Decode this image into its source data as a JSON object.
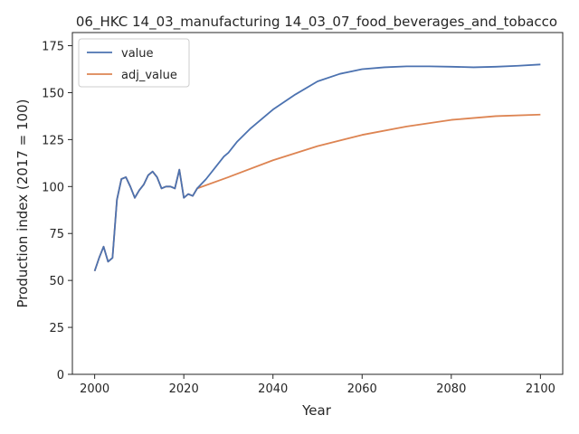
{
  "chart_data": {
    "type": "line",
    "title": "06_HKC 14_03_manufacturing 14_03_07_food_beverages_and_tobacco",
    "xlabel": "Year",
    "ylabel": "Production index (2017 = 100)",
    "xlim": [
      1995,
      2105
    ],
    "ylim": [
      0,
      182
    ],
    "xticks": [
      2000,
      2020,
      2040,
      2060,
      2080,
      2100
    ],
    "yticks": [
      0,
      25,
      50,
      75,
      100,
      125,
      150,
      175
    ],
    "legend_position": "top-left",
    "grid": false,
    "series": [
      {
        "name": "value",
        "color": "#4c72b0",
        "x": [
          2000,
          2001,
          2002,
          2003,
          2004,
          2005,
          2006,
          2007,
          2008,
          2009,
          2010,
          2011,
          2012,
          2013,
          2014,
          2015,
          2016,
          2017,
          2018,
          2019,
          2020,
          2021,
          2022,
          2023,
          2025,
          2027,
          2029,
          2030,
          2032,
          2035,
          2040,
          2045,
          2050,
          2055,
          2060,
          2065,
          2070,
          2075,
          2080,
          2085,
          2090,
          2095,
          2100
        ],
        "y": [
          55,
          62,
          68,
          60,
          62,
          93,
          104,
          105,
          100,
          94,
          98,
          101,
          106,
          108,
          105,
          99,
          100,
          100,
          99,
          109,
          94,
          96,
          95,
          99,
          104,
          110,
          116,
          118,
          124,
          131,
          141,
          149,
          156,
          160,
          162.5,
          163.5,
          164,
          164,
          163.8,
          163.5,
          163.8,
          164.3,
          165
        ]
      },
      {
        "name": "adj_value",
        "color": "#dd8452",
        "x": [
          2000,
          2001,
          2002,
          2003,
          2004,
          2005,
          2006,
          2007,
          2008,
          2009,
          2010,
          2011,
          2012,
          2013,
          2014,
          2015,
          2016,
          2017,
          2018,
          2019,
          2020,
          2021,
          2022,
          2023,
          2030,
          2040,
          2050,
          2060,
          2070,
          2080,
          2090,
          2100
        ],
        "y": [
          55,
          62,
          68,
          60,
          62,
          93,
          104,
          105,
          100,
          94,
          98,
          101,
          106,
          108,
          105,
          99,
          100,
          100,
          99,
          109,
          94,
          96,
          95,
          99,
          105,
          114,
          121.5,
          127.5,
          132,
          135.5,
          137.5,
          138.3
        ]
      }
    ]
  }
}
